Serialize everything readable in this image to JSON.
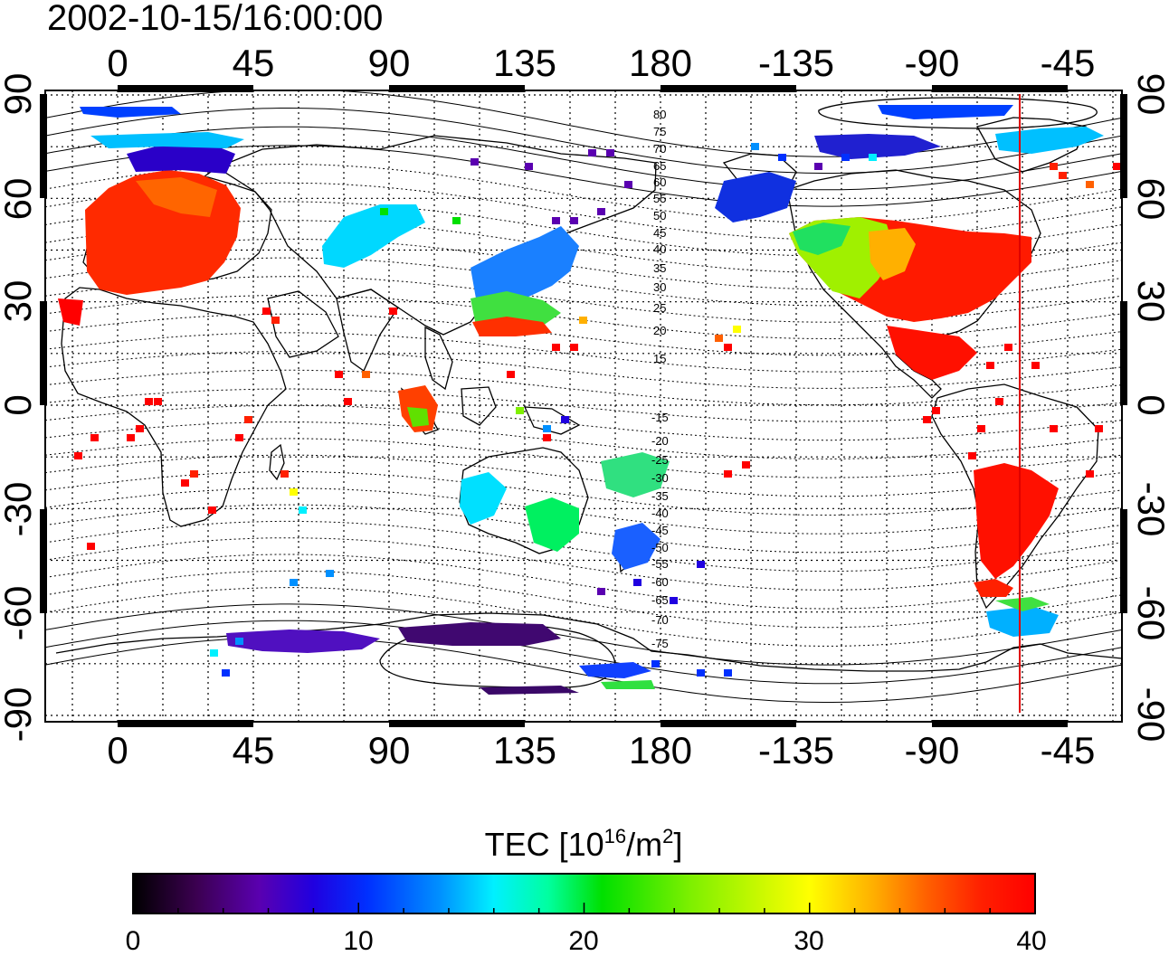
{
  "title": "2002-10-15/16:00:00",
  "map": {
    "top_lon_labels": [
      "0",
      "45",
      "90",
      "135",
      "180",
      "-135",
      "-90",
      "-45"
    ],
    "bottom_lon_labels": [
      "0",
      "45",
      "90",
      "135",
      "180",
      "-135",
      "-90",
      "-45"
    ],
    "left_lat_labels": [
      "90",
      "60",
      "30",
      "0",
      "-30",
      "-60",
      "-90"
    ],
    "right_lat_labels": [
      "90",
      "60",
      "30",
      "0",
      "-30",
      "-60",
      "-90"
    ],
    "north_mlat_labels": [
      "80",
      "75",
      "70",
      "65",
      "60",
      "55",
      "50",
      "45",
      "40",
      "35",
      "30",
      "25",
      "20",
      "15"
    ],
    "south_mlat_labels": [
      "-15",
      "-20",
      "-25",
      "-30",
      "-35",
      "-40",
      "-45",
      "-50",
      "-55",
      "-60",
      "-65",
      "-70",
      "-75"
    ],
    "terminator_color": "#e00000",
    "terminator_lon": -60
  },
  "colorbar": {
    "label_main": "TEC  [10",
    "label_sup1": "16",
    "label_mid": "/m",
    "label_sup2": "2",
    "label_end": "]",
    "min": 0,
    "max": 40,
    "tick_labels": [
      "0",
      "10",
      "20",
      "30",
      "40"
    ],
    "colors": [
      "#000000",
      "#3b0050",
      "#5a00b0",
      "#2000e0",
      "#0030ff",
      "#0090ff",
      "#00f0ff",
      "#00ffa0",
      "#00e000",
      "#80f000",
      "#ffff00",
      "#ffb000",
      "#ff6000",
      "#ff2000",
      "#ff0000"
    ]
  }
}
